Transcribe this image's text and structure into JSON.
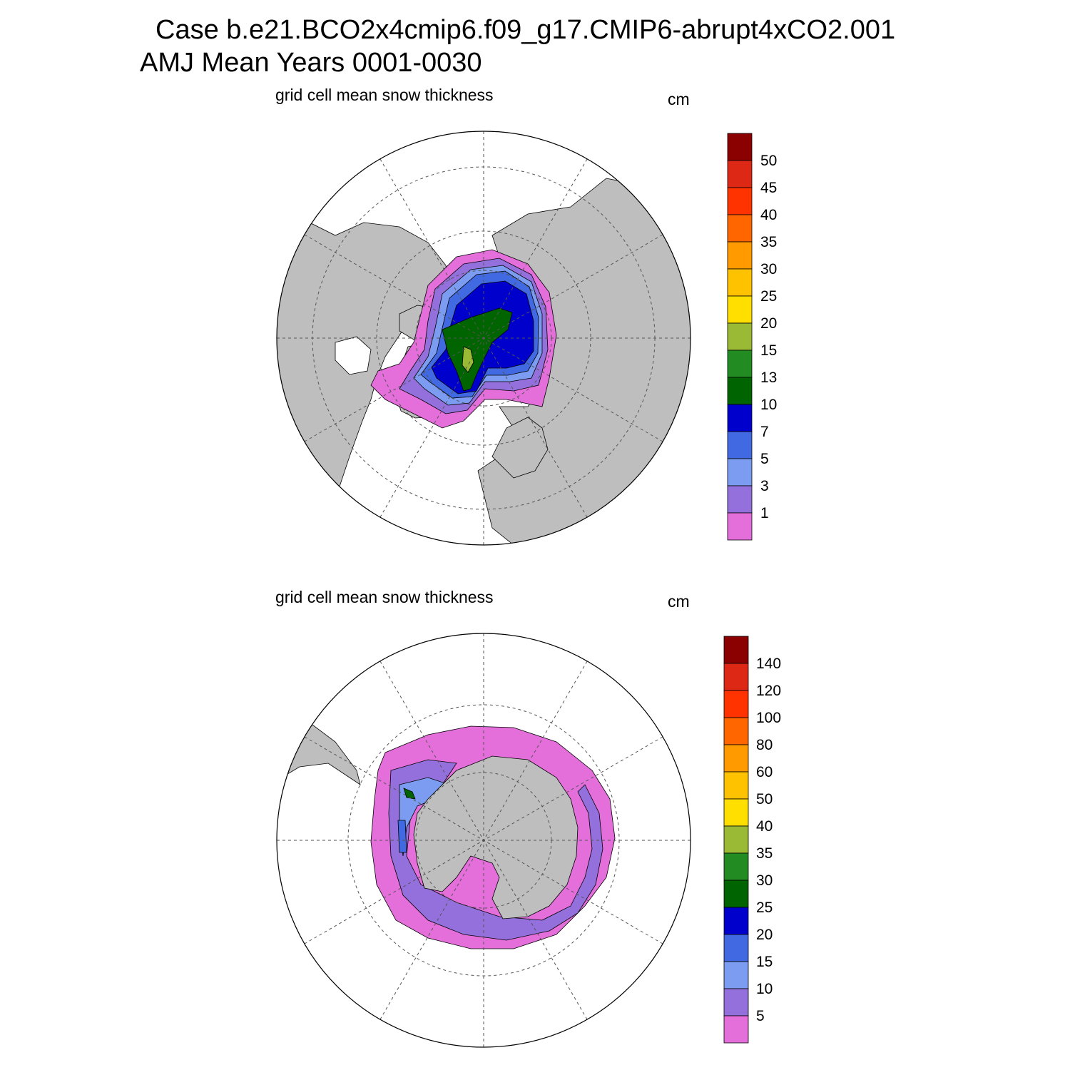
{
  "title": {
    "line1": "Case b.e21.BCO2x4cmip6.f09_g17.CMIP6-abrupt4xCO2.001",
    "line2": "AMJ Mean   Years 0001-0030"
  },
  "colors": {
    "land": "#bebebe",
    "ocean": "#ffffff",
    "palette": [
      "#e46fdb",
      "#9370db",
      "#7b9cf0",
      "#4169e1",
      "#0000cd",
      "#006400",
      "#228b22",
      "#9aba35",
      "#ffdf00",
      "#ffc200",
      "#ff9b00",
      "#ff6600",
      "#ff3300",
      "#dc2814",
      "#8b0000"
    ]
  },
  "panels": [
    {
      "id": "north",
      "title": "grid cell mean snow thickness",
      "units": "cm",
      "hemisphere": "Northern Hemisphere (polar stereographic)",
      "colorbar": {
        "labels": [
          "1",
          "3",
          "5",
          "7",
          "10",
          "13",
          "15",
          "20",
          "25",
          "30",
          "35",
          "40",
          "45",
          "50"
        ]
      }
    },
    {
      "id": "south",
      "title": "grid cell mean snow thickness",
      "units": "cm",
      "hemisphere": "Southern Hemisphere (polar stereographic)",
      "colorbar": {
        "labels": [
          "5",
          "10",
          "15",
          "20",
          "25",
          "30",
          "35",
          "40",
          "50",
          "60",
          "80",
          "100",
          "120",
          "140"
        ]
      }
    }
  ]
}
